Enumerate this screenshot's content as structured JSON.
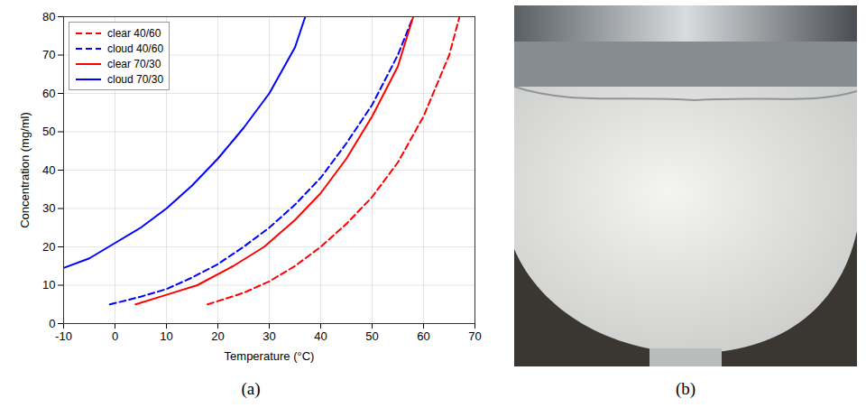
{
  "chart_data": {
    "type": "line",
    "xlabel": "Temperature (°C)",
    "ylabel": "Concentration (mg/ml)",
    "xlim": [
      -10,
      70
    ],
    "xticks": [
      -10,
      0,
      10,
      20,
      30,
      40,
      50,
      60,
      70
    ],
    "ylim": [
      0,
      80
    ],
    "yticks": [
      0,
      10,
      20,
      30,
      40,
      50,
      60,
      70,
      80
    ],
    "grid": true,
    "legend": "top-left",
    "series": [
      {
        "name": "clear 40/60",
        "color": "#ff0000",
        "line_style": "dashed",
        "x": [
          18,
          25,
          30,
          35,
          40,
          45,
          50,
          55,
          60,
          65,
          67
        ],
        "values": [
          5,
          8,
          11,
          15,
          20,
          26,
          33,
          42,
          54,
          70,
          80
        ]
      },
      {
        "name": "cloud 40/60",
        "color": "#0000ff",
        "line_style": "dashed",
        "x": [
          -1,
          5,
          10,
          15,
          20,
          25,
          30,
          35,
          40,
          45,
          50,
          55,
          58
        ],
        "values": [
          5,
          7,
          9,
          12,
          15.5,
          20,
          25,
          31,
          38,
          47,
          57,
          70,
          80
        ]
      },
      {
        "name": "clear 70/30",
        "color": "#ff0000",
        "line_style": "solid",
        "x": [
          4,
          10,
          16,
          23,
          29,
          35,
          40,
          45,
          50,
          55,
          58
        ],
        "values": [
          5,
          7.5,
          10,
          15,
          20,
          27,
          34,
          43,
          54,
          67,
          80
        ]
      },
      {
        "name": "cloud 70/30",
        "color": "#0000ff",
        "line_style": "solid",
        "x": [
          -10,
          -5,
          0,
          5,
          10,
          15,
          20,
          25,
          30,
          35,
          37
        ],
        "values": [
          14.5,
          17,
          21,
          25,
          30,
          36,
          43,
          51,
          60,
          72,
          80
        ]
      }
    ]
  },
  "panel_labels": [
    "(a)",
    "(b)"
  ]
}
